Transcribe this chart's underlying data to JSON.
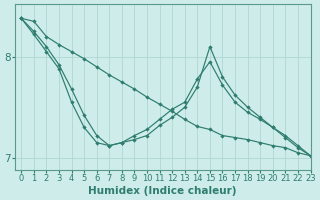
{
  "title": "",
  "xlabel": "Humidex (Indice chaleur)",
  "ylabel": "",
  "background_color": "#ceecea",
  "line_color": "#2e7d6e",
  "grid_color": "#aed8d0",
  "axis_color": "#5a9a8a",
  "xlim": [
    -0.5,
    23
  ],
  "ylim": [
    6.88,
    8.52
  ],
  "yticks": [
    7,
    8
  ],
  "xticks": [
    0,
    1,
    2,
    3,
    4,
    5,
    6,
    7,
    8,
    9,
    10,
    11,
    12,
    13,
    14,
    15,
    16,
    17,
    18,
    19,
    20,
    21,
    22,
    23
  ],
  "series": [
    {
      "x": [
        0,
        1,
        2,
        3,
        4,
        5,
        6,
        7,
        8,
        9,
        10,
        11,
        12,
        13,
        14,
        15,
        16,
        17,
        18,
        19,
        20,
        21,
        22,
        23
      ],
      "y": [
        8.38,
        8.35,
        8.2,
        8.12,
        8.05,
        7.98,
        7.9,
        7.82,
        7.75,
        7.68,
        7.6,
        7.53,
        7.46,
        7.38,
        7.31,
        7.28,
        7.22,
        7.2,
        7.18,
        7.15,
        7.12,
        7.1,
        7.05,
        7.02
      ]
    },
    {
      "x": [
        0,
        1,
        2,
        3,
        4,
        5,
        6,
        7,
        8,
        9,
        10,
        11,
        12,
        13,
        14,
        15,
        16,
        17,
        18,
        19,
        20,
        21,
        22,
        23
      ],
      "y": [
        8.38,
        8.22,
        8.05,
        7.88,
        7.55,
        7.3,
        7.15,
        7.12,
        7.15,
        7.18,
        7.22,
        7.32,
        7.4,
        7.5,
        7.7,
        8.1,
        7.8,
        7.62,
        7.5,
        7.4,
        7.3,
        7.2,
        7.1,
        7.02
      ]
    },
    {
      "x": [
        0,
        1,
        2,
        3,
        4,
        5,
        6,
        7,
        8,
        9,
        10,
        11,
        12,
        13,
        14,
        15,
        16,
        17,
        18,
        19,
        20,
        21,
        22,
        23
      ],
      "y": [
        8.38,
        8.25,
        8.1,
        7.92,
        7.68,
        7.42,
        7.22,
        7.12,
        7.15,
        7.22,
        7.28,
        7.38,
        7.48,
        7.55,
        7.78,
        7.95,
        7.72,
        7.55,
        7.45,
        7.38,
        7.3,
        7.22,
        7.12,
        7.02
      ]
    }
  ],
  "tick_fontsize": 6.0,
  "label_fontsize": 7.5
}
